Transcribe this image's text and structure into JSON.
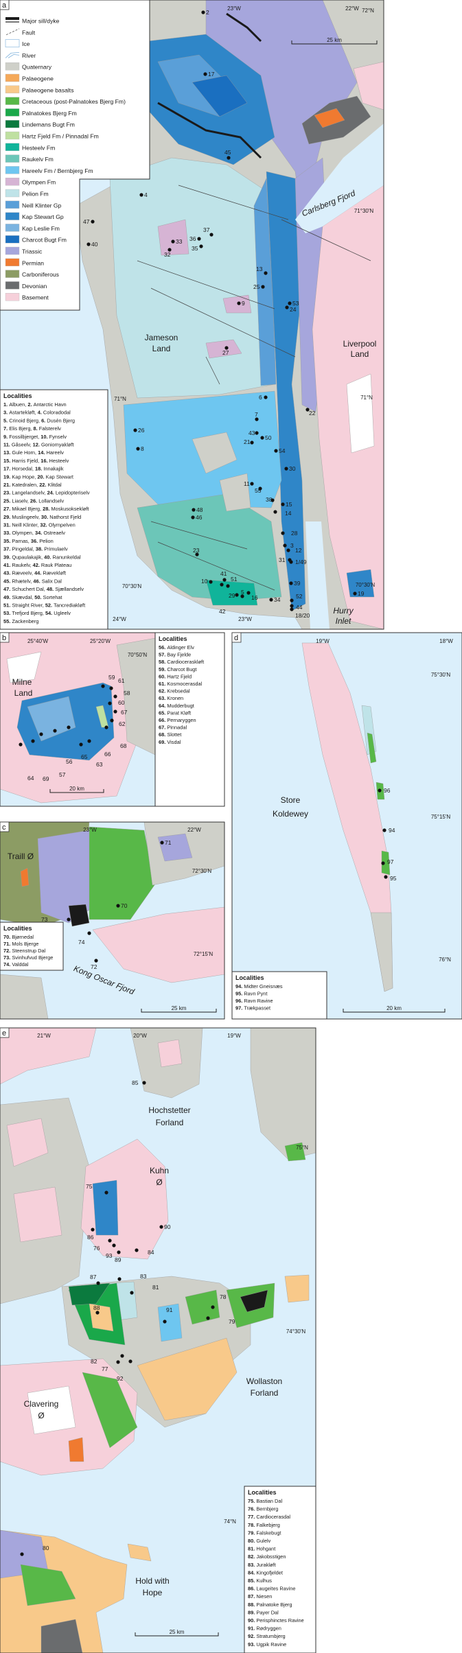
{
  "colors": {
    "sea": "#dbeffb",
    "major_sill_dyke": "#1a1a1a",
    "fault": "#555555",
    "ice": "#ffffff",
    "river": "#7fb2dc",
    "quaternary": "#cfd0c9",
    "palaeogene": "#f5a95a",
    "palaeogene_basalts": "#f8c98a",
    "cretaceous": "#58b848",
    "palnatokes_bjerg": "#1aa84a",
    "lindemans_bugt": "#0b7a3e",
    "hartz_fjeld": "#bfe0a0",
    "hesteelv": "#10b49a",
    "raukelv": "#6cc6b8",
    "hareelv": "#6ec6f0",
    "olympen": "#d6b4d4",
    "pelion": "#bfe3e8",
    "neill_klinter": "#5a9fd8",
    "kap_stewart": "#2f86c8",
    "kap_leslie": "#7ab3e0",
    "charcot_bugt": "#1a6fc0",
    "triassic": "#a6a6dc",
    "permian": "#f07a30",
    "carboniferous": "#8c9c64",
    "devonian": "#6a6c6e",
    "basement": "#f6d0da"
  },
  "legend": [
    {
      "label": "Major sill/dyke",
      "swatch": "sill-line",
      "color": "#1a1a1a"
    },
    {
      "label": "Fault",
      "swatch": "fault-line",
      "color": "#555555"
    },
    {
      "label": "Ice",
      "swatch": "ice-box",
      "color": "#ffffff"
    },
    {
      "label": "River",
      "swatch": "river-lines",
      "color": "#7fb2dc"
    },
    {
      "label": "Quaternary",
      "color": "#cfd0c9"
    },
    {
      "label": "Palaeogene",
      "color": "#f5a95a"
    },
    {
      "label": "Palaeogene basalts",
      "color": "#f8c98a"
    },
    {
      "label": "Cretaceous (post-Palnatokes Bjerg Fm)",
      "color": "#58b848"
    },
    {
      "label": "Palnatokes Bjerg Fm",
      "color": "#1aa84a"
    },
    {
      "label": "Lindemans Bugt Fm",
      "color": "#0b7a3e"
    },
    {
      "label": "Hartz Fjeld Fm / Pinnadal Fm",
      "color": "#bfe0a0"
    },
    {
      "label": "Hesteelv Fm",
      "color": "#10b49a"
    },
    {
      "label": "Raukelv Fm",
      "color": "#6cc6b8"
    },
    {
      "label": "Hareelv Fm / Bernbjerg Fm",
      "color": "#6ec6f0"
    },
    {
      "label": "Olympen Fm",
      "color": "#d6b4d4"
    },
    {
      "label": "Pelion Fm",
      "color": "#bfe3e8"
    },
    {
      "label": "Neill Klinter Gp",
      "color": "#5a9fd8"
    },
    {
      "label": "Kap Stewart Gp",
      "color": "#2f86c8"
    },
    {
      "label": "Kap Leslie Fm",
      "color": "#7ab3e0"
    },
    {
      "label": "Charcot Bugt Fm",
      "color": "#1a6fc0"
    },
    {
      "label": "Triassic",
      "color": "#a6a6dc"
    },
    {
      "label": "Permian",
      "color": "#f07a30"
    },
    {
      "label": "Carboniferous",
      "color": "#8c9c64"
    },
    {
      "label": "Devonian",
      "color": "#6a6c6e"
    },
    {
      "label": "Basement",
      "color": "#f6d0da"
    }
  ],
  "panels": {
    "a": {
      "letter": "a",
      "labels": {
        "lon_23w_top": "23°W",
        "lon_22w_top": "22°W",
        "lat_72n": "72°N",
        "scale": "25 km",
        "lat_71_30n": "71°30'N",
        "lat_71n_left": "71°N",
        "lat_71n_right": "71°N",
        "lat_70_30n_left": "70°30'N",
        "lat_70_30n_right": "70°30'N",
        "lon_24w_bottom": "24°W",
        "lon_23w_bottom": "23°W",
        "carlsberg_fjord": "Carlsberg Fjord",
        "jameson_1": "Jameson",
        "jameson_2": "Land",
        "liverpool_1": "Liverpool",
        "liverpool_2": "Land",
        "hurry_1": "Hurry",
        "hurry_2": "Inlet"
      },
      "markers": [
        "2",
        "17",
        "45",
        "4",
        "47",
        "40",
        "33",
        "36",
        "35",
        "37",
        "32",
        "13",
        "25",
        "53",
        "24",
        "9",
        "27",
        "6",
        "22",
        "7",
        "43",
        "50",
        "21",
        "54",
        "26",
        "8",
        "30",
        "11",
        "55",
        "38",
        "15",
        "14",
        "48",
        "46",
        "28",
        "3",
        "12",
        "31",
        "1/49",
        "23",
        "41",
        "51",
        "10",
        "42",
        "29",
        "5",
        "16",
        "34",
        "39",
        "52",
        "44",
        "18/20",
        "19"
      ],
      "localities_title": "Localities",
      "localities": [
        [
          "1",
          "Albuen"
        ],
        [
          "2",
          "Antarctic Havn"
        ],
        [
          "3",
          "Astartekløft"
        ],
        [
          "4",
          "Coloradodal"
        ],
        [
          "5",
          "Crinoid Bjerg"
        ],
        [
          "6",
          "Dusén Bjerg"
        ],
        [
          "7",
          "Elis Bjerg"
        ],
        [
          "8",
          "Falsterelv"
        ],
        [
          "9",
          "Fossilbjerget"
        ],
        [
          "10",
          "Fynselv"
        ],
        [
          "11",
          "Gåseelv"
        ],
        [
          "12",
          "Goniomyakløft"
        ],
        [
          "13",
          "Gule Horn"
        ],
        [
          "14",
          "Hareelv"
        ],
        [
          "15",
          "Harris Fjeld"
        ],
        [
          "16",
          "Hesteelv"
        ],
        [
          "17",
          "Horsedal"
        ],
        [
          "18",
          "Innakajik"
        ],
        [
          "19",
          "Kap Hope"
        ],
        [
          "20",
          "Kap Stewart"
        ],
        [
          "21",
          "Katedralen"
        ],
        [
          "22",
          "Klitdal"
        ],
        [
          "23",
          "Langelandselv"
        ],
        [
          "24",
          "Lepidopteriselv"
        ],
        [
          "25",
          "Liaselv"
        ],
        [
          "26",
          "Lollandselv"
        ],
        [
          "27",
          "Mikael Bjerg"
        ],
        [
          "28",
          "Moskusoksekløft"
        ],
        [
          "29",
          "Muslingeelv"
        ],
        [
          "30",
          "Nathorst Fjeld"
        ],
        [
          "31",
          "Neill Klinter"
        ],
        [
          "32",
          "Olympelven"
        ],
        [
          "33",
          "Olympen"
        ],
        [
          "34",
          "Ostreaelv"
        ],
        [
          "35",
          "Parnas"
        ],
        [
          "36",
          "Pelion"
        ],
        [
          "37",
          "Pingeldal"
        ],
        [
          "38",
          "Primulaelv"
        ],
        [
          "39",
          "Qupaulakajik"
        ],
        [
          "40",
          "Ranunkeldal"
        ],
        [
          "41",
          "Raukelv"
        ],
        [
          "42",
          "Rauk Plateau"
        ],
        [
          "43",
          "Ræveelv"
        ],
        [
          "44",
          "Rævekløft"
        ],
        [
          "45",
          "Rhætelv"
        ],
        [
          "46",
          "Salix Dal"
        ],
        [
          "47",
          "Schuchert Dal"
        ],
        [
          "48",
          "Sjællandselv"
        ],
        [
          "49",
          "Skævdal"
        ],
        [
          "50",
          "Sortehat"
        ],
        [
          "51",
          "Straight River"
        ],
        [
          "52",
          "Tancredia­kløft"
        ],
        [
          "53",
          "Trefjord Bjerg"
        ],
        [
          "54",
          "Ugleelv"
        ],
        [
          "55",
          "Zackenberg"
        ]
      ]
    },
    "b": {
      "letter": "b",
      "labels": {
        "lon_25_40w": "25°40'W",
        "lon_25_20w": "25°20'W",
        "lat_70_50n": "70°50'N",
        "milne_1": "Milne",
        "milne_2": "Land",
        "scale": "20 km"
      },
      "markers": [
        "59",
        "61",
        "58",
        "60",
        "67",
        "62",
        "68",
        "66",
        "63",
        "65",
        "56",
        "57",
        "69",
        "64"
      ],
      "localities_title": "Localities",
      "localities": [
        [
          "56",
          "Aldinger Elv"
        ],
        [
          "57",
          "Bay Fjelde"
        ],
        [
          "58",
          "Cardioceraskløft"
        ],
        [
          "59",
          "Charcot Bugt"
        ],
        [
          "60",
          "Hartz Fjeld"
        ],
        [
          "61",
          "Kosmocerasdal"
        ],
        [
          "62",
          "Krebsedal"
        ],
        [
          "63",
          "Kronen"
        ],
        [
          "64",
          "Mudderbugt"
        ],
        [
          "65",
          "Parat Kløft"
        ],
        [
          "66",
          "Pernaryggen"
        ],
        [
          "67",
          "Pinnadal"
        ],
        [
          "68",
          "Slottet"
        ],
        [
          "69",
          "Visdal"
        ]
      ]
    },
    "c": {
      "letter": "c",
      "labels": {
        "lon_23w": "23°W",
        "lon_22w": "22°W",
        "lat_72_30n": "72°30'N",
        "lat_72_15n": "72°15'N",
        "traill": "Traill Ø",
        "kong_oscar": "Kong Oscar Fjord",
        "scale": "25 km"
      },
      "markers": [
        "71",
        "70",
        "73",
        "74",
        "72"
      ],
      "localities_title": "Localities",
      "localities": [
        [
          "70",
          "Bjørnedal"
        ],
        [
          "71",
          "Mols Bjerge"
        ],
        [
          "72",
          "Steenstrup Dal"
        ],
        [
          "73",
          "Svinhufvud Bjerge"
        ],
        [
          "74",
          "Valddal"
        ]
      ]
    },
    "d": {
      "letter": "d",
      "labels": {
        "lon_19w": "19°W",
        "lon_18w": "18°W",
        "lat_75_30n": "75°30'N",
        "lat_75_15n": "75°15'N",
        "lat_76n": "76°N",
        "store": "Store",
        "koldewey": "Koldewey",
        "scale": "20 km"
      },
      "markers": [
        "96",
        "94",
        "97",
        "95"
      ],
      "localities_title": "Localities",
      "localities": [
        [
          "94",
          "Midter Gneisnæs"
        ],
        [
          "95",
          "Ravn Pynt"
        ],
        [
          "96",
          "Ravn Ravine"
        ],
        [
          "97",
          "Trækpasset"
        ]
      ]
    },
    "e": {
      "letter": "e",
      "labels": {
        "lon_21w": "21°W",
        "lon_20w": "20°W",
        "lon_19w": "19°W",
        "lat_75n": "75°N",
        "lat_74_30n": "74°30'N",
        "lat_74n": "74°N",
        "hochstetter_1": "Hochstetter",
        "hochstetter_2": "Forland",
        "kuhn_1": "Kuhn",
        "kuhn_2": "Ø",
        "wollaston_1": "Wollaston",
        "wollaston_2": "Forland",
        "clavering_1": "Clavering",
        "clavering_2": "Ø",
        "hold_1": "Hold with",
        "hold_2": "Hope",
        "scale": "25 km"
      },
      "markers": [
        "85",
        "75",
        "90",
        "86",
        "76",
        "93",
        "89",
        "84",
        "87",
        "83",
        "81",
        "91",
        "78",
        "79",
        "88",
        "82",
        "77",
        "92",
        "80"
      ],
      "localities_title": "Localities",
      "localities": [
        [
          "75",
          "Bastian Dal"
        ],
        [
          "76",
          "Bernbjerg"
        ],
        [
          "77",
          "Cardiocerasdal"
        ],
        [
          "78",
          "Falkebjerg"
        ],
        [
          "79",
          "Falskebugt"
        ],
        [
          "80",
          "Gulelv"
        ],
        [
          "81",
          "Hohgant"
        ],
        [
          "82",
          "Jakobsstigen"
        ],
        [
          "83",
          "Jurakløft"
        ],
        [
          "84",
          "Kingofjeldet"
        ],
        [
          "85",
          "Kulhus"
        ],
        [
          "86",
          "Laugeites Ravine"
        ],
        [
          "87",
          "Niesen"
        ],
        [
          "88",
          "Palnatoke Bjerg"
        ],
        [
          "89",
          "Payer Dal"
        ],
        [
          "90",
          "Perisphinctes Ravine"
        ],
        [
          "91",
          "Rødryggen"
        ],
        [
          "92",
          "Stratumbjerg"
        ],
        [
          "93",
          "Ugpik Ravine"
        ]
      ]
    }
  }
}
